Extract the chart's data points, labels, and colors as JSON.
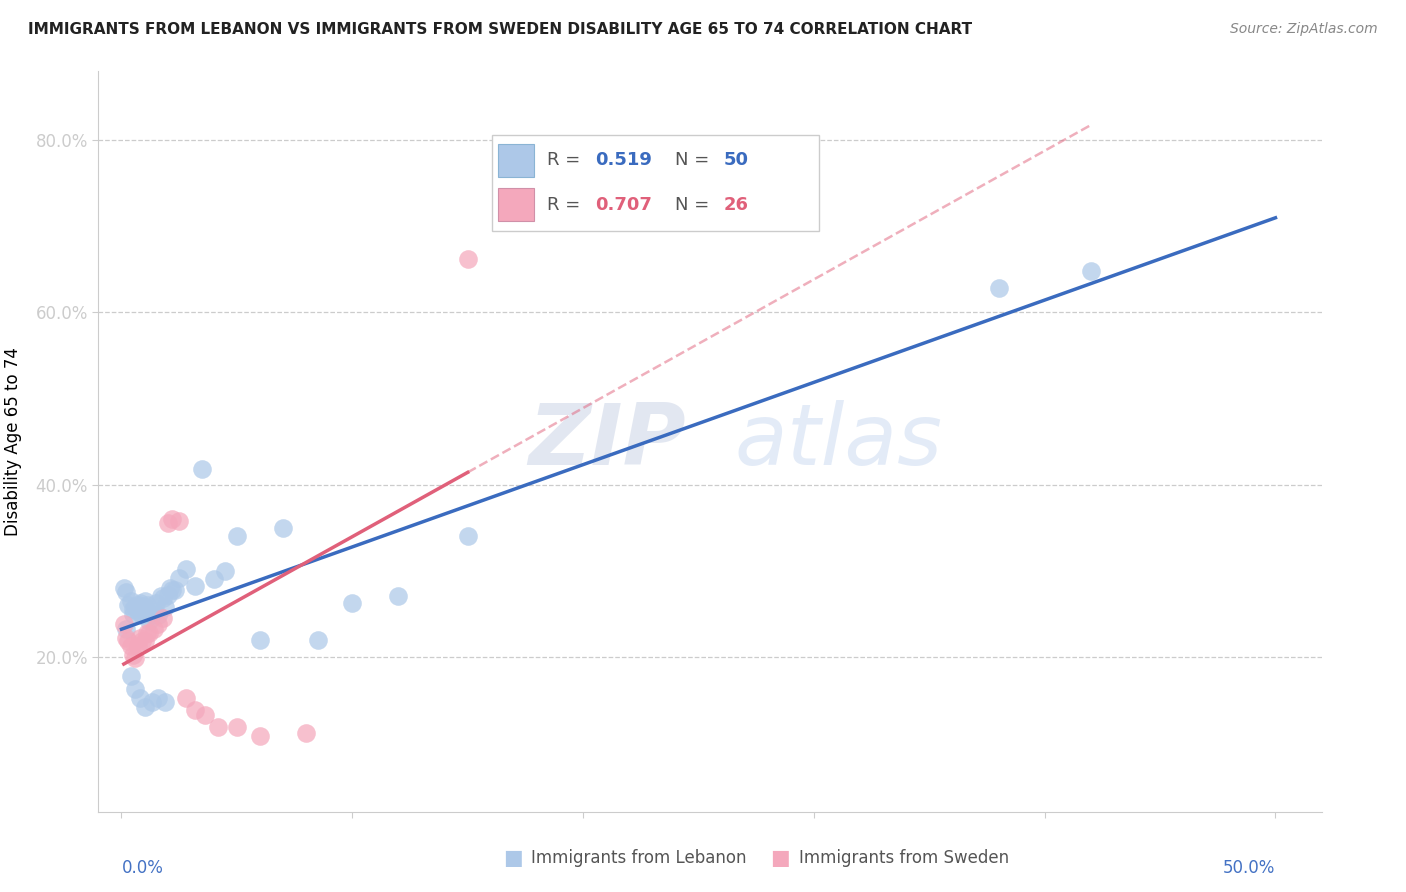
{
  "title": "IMMIGRANTS FROM LEBANON VS IMMIGRANTS FROM SWEDEN DISABILITY AGE 65 TO 74 CORRELATION CHART",
  "source": "Source: ZipAtlas.com",
  "ylabel": "Disability Age 65 to 74",
  "x_ticks": [
    0.0,
    0.1,
    0.2,
    0.3,
    0.4,
    0.5
  ],
  "x_ticklabels_ends": [
    "0.0%",
    "50.0%"
  ],
  "y_ticks": [
    0.2,
    0.4,
    0.6,
    0.8
  ],
  "y_ticklabels": [
    "20.0%",
    "40.0%",
    "60.0%",
    "80.0%"
  ],
  "xlim": [
    -0.01,
    0.52
  ],
  "ylim": [
    0.02,
    0.88
  ],
  "R_lebanon": 0.519,
  "N_lebanon": 50,
  "R_sweden": 0.707,
  "N_sweden": 26,
  "watermark_zip": "ZIP",
  "watermark_atlas": "atlas",
  "blue_scatter_color": "#adc8e8",
  "blue_line_color": "#3a6bbf",
  "pink_scatter_color": "#f4a8bc",
  "pink_line_color": "#e0607a",
  "grid_color": "#cccccc",
  "tick_color": "#4472c4",
  "lebanon_x": [
    0.001,
    0.002,
    0.003,
    0.004,
    0.005,
    0.005,
    0.006,
    0.007,
    0.007,
    0.008,
    0.008,
    0.009,
    0.01,
    0.01,
    0.011,
    0.012,
    0.013,
    0.014,
    0.015,
    0.016,
    0.017,
    0.018,
    0.019,
    0.02,
    0.021,
    0.022,
    0.023,
    0.025,
    0.028,
    0.032,
    0.035,
    0.04,
    0.045,
    0.05,
    0.06,
    0.07,
    0.085,
    0.1,
    0.12,
    0.15,
    0.002,
    0.004,
    0.006,
    0.008,
    0.01,
    0.013,
    0.016,
    0.019,
    0.38,
    0.42
  ],
  "lebanon_y": [
    0.28,
    0.275,
    0.26,
    0.265,
    0.25,
    0.255,
    0.258,
    0.26,
    0.252,
    0.262,
    0.255,
    0.248,
    0.265,
    0.258,
    0.26,
    0.242,
    0.248,
    0.252,
    0.262,
    0.248,
    0.27,
    0.268,
    0.258,
    0.272,
    0.28,
    0.278,
    0.278,
    0.292,
    0.302,
    0.282,
    0.418,
    0.29,
    0.3,
    0.34,
    0.22,
    0.35,
    0.22,
    0.262,
    0.27,
    0.34,
    0.232,
    0.178,
    0.162,
    0.152,
    0.142,
    0.148,
    0.152,
    0.148,
    0.628,
    0.648
  ],
  "sweden_x": [
    0.001,
    0.002,
    0.003,
    0.004,
    0.005,
    0.006,
    0.007,
    0.008,
    0.009,
    0.01,
    0.011,
    0.012,
    0.014,
    0.016,
    0.018,
    0.02,
    0.022,
    0.025,
    0.028,
    0.032,
    0.036,
    0.042,
    0.05,
    0.06,
    0.08,
    0.15
  ],
  "sweden_y": [
    0.238,
    0.222,
    0.218,
    0.212,
    0.202,
    0.198,
    0.212,
    0.222,
    0.218,
    0.218,
    0.228,
    0.228,
    0.232,
    0.238,
    0.245,
    0.355,
    0.36,
    0.358,
    0.152,
    0.138,
    0.132,
    0.118,
    0.118,
    0.108,
    0.112,
    0.662
  ]
}
